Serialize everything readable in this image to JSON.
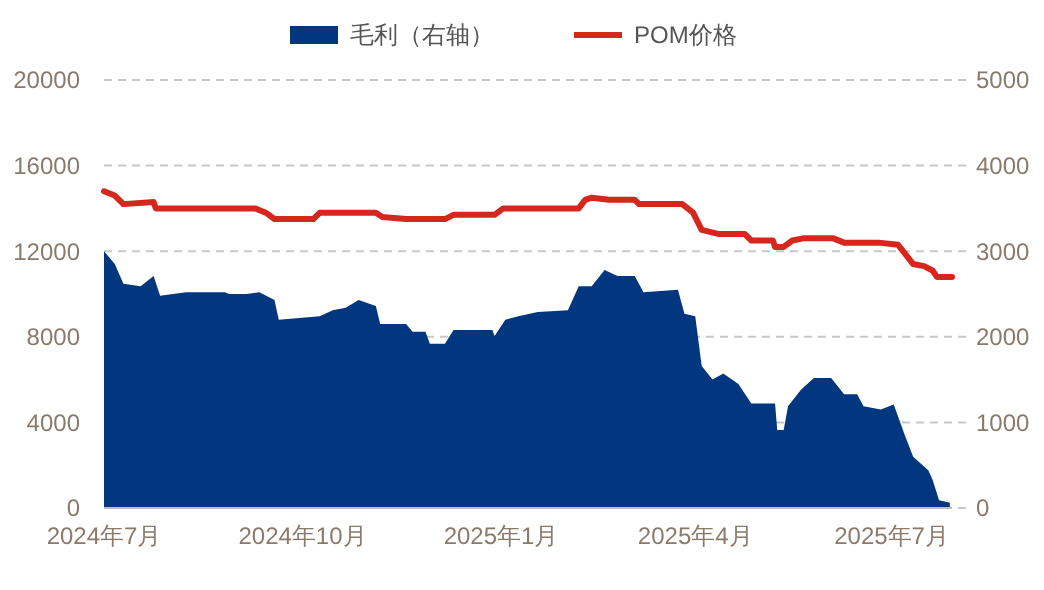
{
  "chart_data": {
    "type": "line",
    "xlim": [
      "2024-07-01",
      "2025-07-29"
    ],
    "xticks": [
      {
        "value": "2024-07-01",
        "label": "2024年7月"
      },
      {
        "value": "2024-10-01",
        "label": "2024年10月"
      },
      {
        "value": "2025-01-01",
        "label": "2025年1月"
      },
      {
        "value": "2025-04-01",
        "label": "2025年4月"
      },
      {
        "value": "2025-07-01",
        "label": "2025年7月"
      }
    ],
    "ylim": [
      0,
      20000
    ],
    "yticks": [
      0,
      4000,
      8000,
      12000,
      16000,
      20000
    ],
    "y2lim": [
      0,
      5000
    ],
    "y2ticks": [
      0,
      1000,
      2000,
      3000,
      4000,
      5000
    ],
    "grid": "y",
    "legend": "top",
    "series": [
      {
        "name": "毛利（右轴）",
        "type": "area",
        "axis": "y2",
        "color": "#02377f",
        "x": [
          "2024-07-01",
          "2024-07-06",
          "2024-07-10",
          "2024-07-18",
          "2024-07-24",
          "2024-07-27",
          "2024-08-08",
          "2024-08-26",
          "2024-08-28",
          "2024-09-05",
          "2024-09-11",
          "2024-09-18",
          "2024-09-20",
          "2024-10-09",
          "2024-10-15",
          "2024-10-21",
          "2024-10-27",
          "2024-11-04",
          "2024-11-06",
          "2024-11-18",
          "2024-11-21",
          "2024-11-27",
          "2024-11-29",
          "2024-12-06",
          "2024-12-10",
          "2024-12-28",
          "2024-12-29",
          "2025-01-03",
          "2025-01-09",
          "2025-01-18",
          "2025-02-01",
          "2025-02-06",
          "2025-02-12",
          "2025-02-18",
          "2025-02-24",
          "2025-03-04",
          "2025-03-08",
          "2025-03-24",
          "2025-03-27",
          "2025-04-01",
          "2025-04-04",
          "2025-04-09",
          "2025-04-14",
          "2025-04-21",
          "2025-04-27",
          "2025-05-08",
          "2025-05-09",
          "2025-05-12",
          "2025-05-14",
          "2025-05-20",
          "2025-05-26",
          "2025-06-03",
          "2025-06-09",
          "2025-06-15",
          "2025-06-18",
          "2025-06-26",
          "2025-07-02",
          "2025-07-07",
          "2025-07-11",
          "2025-07-18",
          "2025-07-20",
          "2025-07-23",
          "2025-07-28"
        ],
        "values": [
          3000,
          2850,
          2620,
          2590,
          2710,
          2480,
          2520,
          2520,
          2500,
          2500,
          2520,
          2430,
          2200,
          2240,
          2310,
          2340,
          2430,
          2360,
          2150,
          2150,
          2060,
          2060,
          1920,
          1920,
          2080,
          2080,
          2010,
          2200,
          2240,
          2290,
          2310,
          2590,
          2590,
          2780,
          2710,
          2710,
          2520,
          2550,
          2270,
          2240,
          1660,
          1500,
          1570,
          1450,
          1220,
          1220,
          910,
          910,
          1190,
          1380,
          1520,
          1520,
          1330,
          1330,
          1190,
          1150,
          1210,
          860,
          600,
          440,
          330,
          90,
          60
        ]
      },
      {
        "name": "POM价格",
        "color": "#d7261e",
        "x": [
          "2024-07-01",
          "2024-07-06",
          "2024-07-10",
          "2024-07-24",
          "2024-07-25",
          "2024-09-09",
          "2024-09-14",
          "2024-09-18",
          "2024-10-06",
          "2024-10-09",
          "2024-11-04",
          "2024-11-07",
          "2024-11-18",
          "2024-12-06",
          "2024-12-10",
          "2024-12-29",
          "2025-01-02",
          "2025-02-06",
          "2025-02-09",
          "2025-02-12",
          "2025-02-20",
          "2025-03-04",
          "2025-03-06",
          "2025-03-26",
          "2025-03-31",
          "2025-04-04",
          "2025-04-12",
          "2025-04-24",
          "2025-04-27",
          "2025-05-07",
          "2025-05-08",
          "2025-05-12",
          "2025-05-16",
          "2025-05-21",
          "2025-06-04",
          "2025-06-09",
          "2025-06-25",
          "2025-07-04",
          "2025-07-11",
          "2025-07-16",
          "2025-07-20",
          "2025-07-22",
          "2025-07-29"
        ],
        "values": [
          14800,
          14600,
          14200,
          14300,
          14000,
          14000,
          13800,
          13500,
          13500,
          13800,
          13800,
          13600,
          13500,
          13500,
          13700,
          13700,
          14000,
          14000,
          14400,
          14500,
          14400,
          14400,
          14200,
          14200,
          13800,
          13000,
          12800,
          12800,
          12500,
          12500,
          12200,
          12200,
          12500,
          12600,
          12600,
          12400,
          12400,
          12300,
          11400,
          11300,
          11100,
          10800,
          10800
        ]
      }
    ]
  }
}
